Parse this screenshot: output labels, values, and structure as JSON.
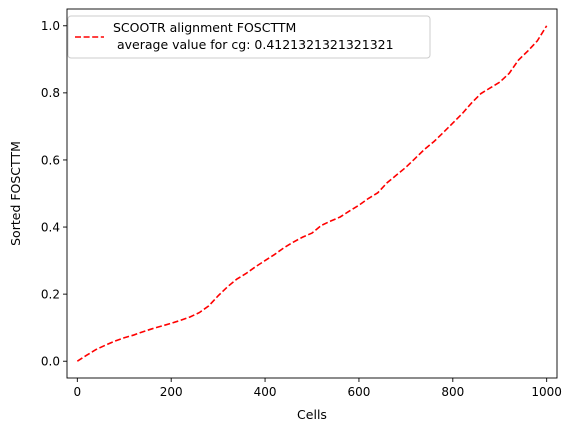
{
  "chart_data": {
    "type": "line",
    "title": "",
    "xlabel": "Cells",
    "ylabel": "Sorted FOSCTTM",
    "xlim": [
      -22,
      1022
    ],
    "ylim": [
      -0.05,
      1.05
    ],
    "x_ticks": [
      0,
      200,
      400,
      600,
      800,
      1000
    ],
    "x_tick_labels": [
      "0",
      "200",
      "400",
      "600",
      "800",
      "1000"
    ],
    "y_ticks": [
      0.0,
      0.2,
      0.4,
      0.6,
      0.8,
      1.0
    ],
    "y_tick_labels": [
      "0.0",
      "0.2",
      "0.4",
      "0.6",
      "0.8",
      "1.0"
    ],
    "grid": false,
    "legend_position": "top-left",
    "legend": {
      "line1": "SCOOTR alignment FOSCTTM",
      "line2": " average value for cg: 0.4121321321321321"
    },
    "series": [
      {
        "name": "SCOOTR alignment FOSCTTM\n average value for cg: 0.4121321321321321",
        "color": "#ff0000",
        "line_style": "dashed",
        "x": [
          0,
          20,
          40,
          60,
          80,
          100,
          120,
          140,
          160,
          180,
          200,
          220,
          240,
          260,
          280,
          300,
          320,
          340,
          360,
          380,
          400,
          420,
          440,
          460,
          480,
          500,
          520,
          540,
          560,
          580,
          600,
          620,
          640,
          660,
          680,
          700,
          720,
          740,
          760,
          780,
          800,
          820,
          840,
          860,
          880,
          900,
          920,
          940,
          960,
          980,
          1000
        ],
        "y": [
          0.0,
          0.018,
          0.035,
          0.048,
          0.06,
          0.07,
          0.078,
          0.088,
          0.097,
          0.105,
          0.113,
          0.122,
          0.132,
          0.145,
          0.165,
          0.195,
          0.222,
          0.245,
          0.262,
          0.282,
          0.3,
          0.318,
          0.338,
          0.355,
          0.37,
          0.382,
          0.405,
          0.418,
          0.43,
          0.448,
          0.465,
          0.485,
          0.502,
          0.532,
          0.555,
          0.578,
          0.605,
          0.632,
          0.655,
          0.682,
          0.71,
          0.738,
          0.77,
          0.798,
          0.815,
          0.832,
          0.858,
          0.898,
          0.925,
          0.955,
          1.0
        ]
      }
    ]
  }
}
